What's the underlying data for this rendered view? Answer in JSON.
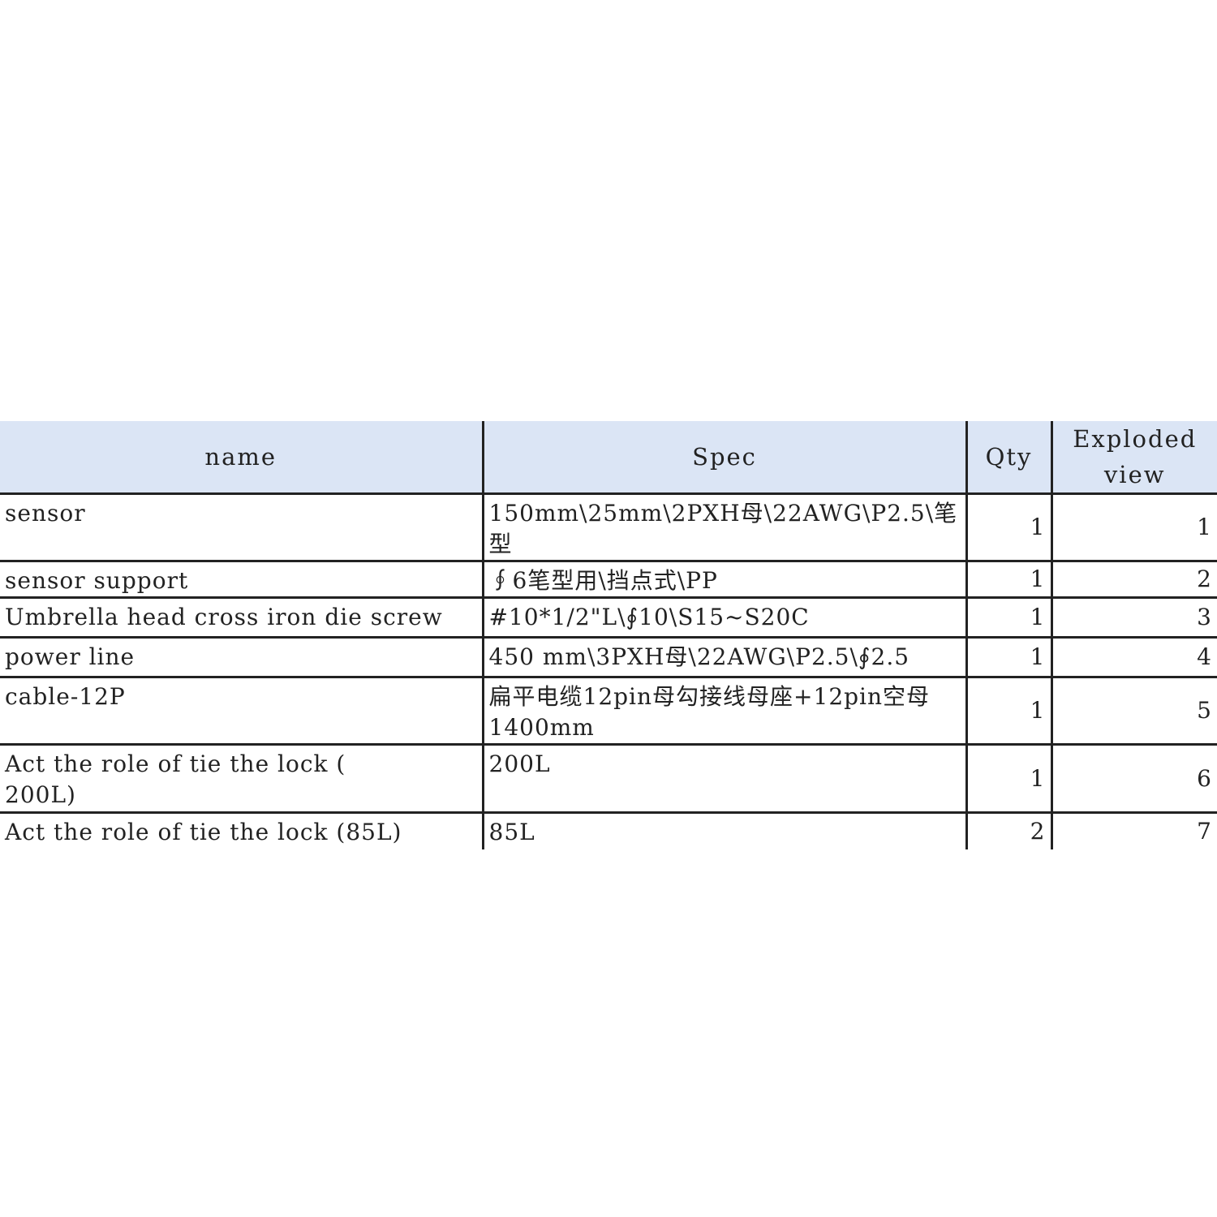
{
  "table": {
    "headers": [
      "name",
      "Spec",
      "Qty",
      "Exploded view"
    ],
    "rows": [
      {
        "name": "sensor",
        "spec": "150mm\\25mm\\2PXH母\\22AWG\\P2.5\\笔型",
        "qty": "1",
        "view": "1"
      },
      {
        "name": "sensor support",
        "spec": "∮6笔型用\\挡点式\\PP",
        "qty": "1",
        "view": "2"
      },
      {
        "name": "Umbrella head cross iron die screw",
        "spec": "#10*1/2\"L\\∮10\\S15~S20C",
        "qty": "1",
        "view": "3"
      },
      {
        "name": "power line",
        "spec": "450 mm\\3PXH母\\22AWG\\P2.5\\∮2.5",
        "qty": "1",
        "view": "4"
      },
      {
        "name": "cable-12P",
        "spec": "扁平电缆12pin母勾接线母座+12pin空母\n1400mm",
        "qty": "1",
        "view": "5"
      },
      {
        "name": "Act the role of tie the lock (\n200L)",
        "spec": "200L",
        "qty": "1",
        "view": "6"
      },
      {
        "name": "Act the role of tie the lock (85L)",
        "spec": "85L",
        "qty": "2",
        "view": "7"
      }
    ]
  },
  "colors": {
    "header_bg": "#dbe5f5",
    "border": "#222222"
  }
}
